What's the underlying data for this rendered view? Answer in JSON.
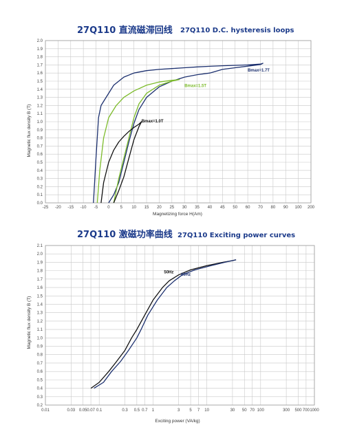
{
  "colors": {
    "navy": "#1b2f6e",
    "green": "#7cbb2a",
    "black": "#111111",
    "title": "#1b3a8a",
    "grid": "#c8c8c8"
  },
  "chart_data": [
    {
      "type": "line",
      "title": "27Q110 直流磁滞回线",
      "subtitle": "27Q110  D.C. hysteresis loops",
      "xlabel": "Magnetizing force H(Am)",
      "ylabel": "Magnetic flux density B (T)",
      "xlim": [
        -25,
        200
      ],
      "ylim": [
        0,
        2.0
      ],
      "x_ticks": [
        -25,
        -20,
        -15,
        -10,
        -5,
        0,
        5,
        10,
        15,
        20,
        25,
        30,
        35,
        40,
        45,
        50,
        60,
        70,
        80,
        90,
        100,
        200
      ],
      "y_ticks": [
        0.0,
        0.1,
        0.2,
        0.3,
        0.4,
        0.5,
        0.6,
        0.7,
        0.8,
        0.9,
        1.0,
        1.1,
        1.2,
        1.3,
        1.4,
        1.5,
        1.6,
        1.7,
        1.8,
        1.9,
        2.0
      ],
      "grid": true,
      "series": [
        {
          "name": "Bmax=1.7T",
          "color": "navy",
          "label_at": [
            60,
            1.62
          ],
          "x": [
            -6,
            -5,
            -4,
            -3,
            -1,
            2,
            6,
            10,
            15,
            20,
            25,
            30,
            35,
            40,
            45,
            50,
            60,
            70,
            72,
            70,
            60,
            50,
            45,
            40,
            35,
            30,
            25,
            20,
            15,
            12,
            10,
            8,
            6,
            4,
            2,
            0
          ],
          "y": [
            0.0,
            0.55,
            1.05,
            1.2,
            1.3,
            1.45,
            1.55,
            1.6,
            1.63,
            1.645,
            1.655,
            1.665,
            1.675,
            1.683,
            1.69,
            1.695,
            1.7,
            1.71,
            1.72,
            1.705,
            1.685,
            1.665,
            1.645,
            1.6,
            1.58,
            1.55,
            1.5,
            1.43,
            1.3,
            1.15,
            0.98,
            0.75,
            0.5,
            0.25,
            0.1,
            0.0
          ]
        },
        {
          "name": "Bmax=1.5T",
          "color": "green",
          "label_at": [
            30,
            1.43
          ],
          "x": [
            -4.5,
            -3.5,
            -2,
            0,
            3,
            6,
            10,
            15,
            20,
            25,
            28,
            25,
            20,
            15,
            12,
            10,
            8,
            6,
            4,
            2
          ],
          "y": [
            0.0,
            0.4,
            0.8,
            1.05,
            1.2,
            1.3,
            1.38,
            1.45,
            1.49,
            1.51,
            1.52,
            1.5,
            1.45,
            1.35,
            1.22,
            1.05,
            0.8,
            0.55,
            0.3,
            0.0
          ]
        },
        {
          "name": "Bmax=1.0T",
          "color": "black",
          "label_at": [
            13,
            0.99
          ],
          "x": [
            -3,
            -2,
            0,
            2,
            4,
            6,
            8,
            10,
            12,
            13,
            12,
            10,
            8,
            6,
            4,
            2
          ],
          "y": [
            0.0,
            0.25,
            0.5,
            0.65,
            0.75,
            0.82,
            0.88,
            0.93,
            0.97,
            1.0,
            0.94,
            0.78,
            0.55,
            0.32,
            0.15,
            0.0
          ]
        }
      ]
    },
    {
      "type": "line",
      "title": "27Q110 激磁功率曲线",
      "subtitle": "27Q110 Exciting power curves",
      "xlabel": "Exciting power (VA/kg)",
      "ylabel": "Magnetic flux density B (T)",
      "x_scale": "log",
      "xlim": [
        0.01,
        1000
      ],
      "ylim": [
        0.2,
        2.1
      ],
      "x_ticks": [
        0.01,
        0.03,
        0.05,
        0.07,
        0.1,
        0.3,
        0.5,
        0.7,
        1,
        3,
        5,
        7,
        10,
        30,
        50,
        70,
        100,
        300,
        500,
        700,
        1000
      ],
      "x_tick_labels": [
        "0.01",
        "0.03",
        "0.05",
        "0.07",
        "0.1",
        "0.3",
        "0.5",
        "0.7",
        "1",
        "3",
        "5",
        "7",
        "10",
        "30",
        "50",
        "70",
        "100",
        "300",
        "500",
        "700",
        "1000"
      ],
      "y_ticks": [
        0.2,
        0.3,
        0.4,
        0.5,
        0.6,
        0.7,
        0.8,
        0.9,
        1.0,
        1.1,
        1.2,
        1.3,
        1.4,
        1.5,
        1.6,
        1.7,
        1.8,
        1.9,
        2.0,
        2.1
      ],
      "grid": true,
      "series": [
        {
          "name": "50Hz",
          "color": "black",
          "label_at": [
            1.6,
            1.77
          ],
          "x": [
            0.07,
            0.1,
            0.15,
            0.2,
            0.3,
            0.4,
            0.5,
            0.7,
            1.0,
            1.5,
            2,
            3,
            5,
            10,
            20,
            30,
            35
          ],
          "y": [
            0.4,
            0.47,
            0.6,
            0.7,
            0.85,
            1.0,
            1.1,
            1.27,
            1.45,
            1.6,
            1.68,
            1.75,
            1.81,
            1.86,
            1.9,
            1.92,
            1.93
          ]
        },
        {
          "name": "60Hz",
          "color": "navy",
          "label_at": [
            3.3,
            1.74
          ],
          "x": [
            0.08,
            0.12,
            0.17,
            0.25,
            0.35,
            0.5,
            0.6,
            0.8,
            1.2,
            1.8,
            2.5,
            3.5,
            6,
            12,
            25,
            35
          ],
          "y": [
            0.4,
            0.47,
            0.6,
            0.72,
            0.85,
            1.0,
            1.1,
            1.27,
            1.45,
            1.6,
            1.68,
            1.75,
            1.81,
            1.86,
            1.91,
            1.93
          ]
        }
      ]
    }
  ]
}
